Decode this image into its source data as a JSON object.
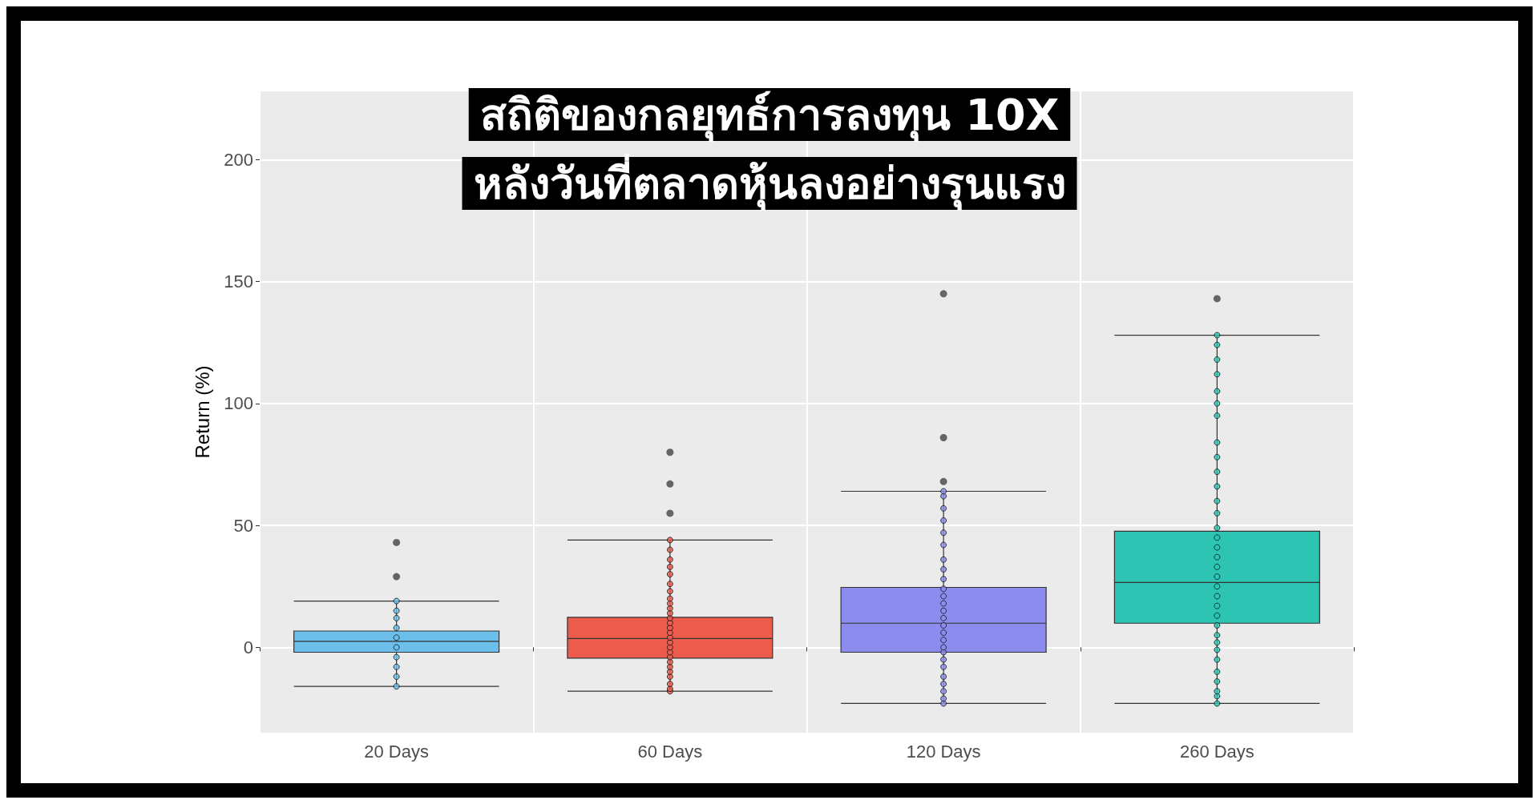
{
  "chart_data": {
    "type": "box",
    "title": "สถิติของกลยุทธ์การลงทุน 10X",
    "subtitle": "หลังวันที่ตลาดหุ้นลงอย่างรุนแรง",
    "ylabel": "Return (%)",
    "categories": [
      "20 Days",
      "60 Days",
      "120 Days",
      "260 Days"
    ],
    "colors": [
      "#6cbfea",
      "#ec5b4c",
      "#8b8cee",
      "#2ec4b4"
    ],
    "boxes": [
      {
        "low": -16,
        "q1": -2,
        "median": 2.5,
        "q3": 6.7,
        "high": 19,
        "outliers": [
          29,
          43
        ]
      },
      {
        "low": -18,
        "q1": -4.4,
        "median": 3.6,
        "q3": 12.3,
        "high": 44,
        "outliers": [
          55,
          67,
          80
        ]
      },
      {
        "low": -23,
        "q1": -2,
        "median": 9.9,
        "q3": 24.6,
        "high": 64,
        "outliers": [
          68,
          86,
          145
        ]
      },
      {
        "low": -23,
        "q1": 9.9,
        "median": 26.6,
        "q3": 47.6,
        "high": 128,
        "outliers": [
          143
        ]
      }
    ],
    "series": [
      {
        "type": "scatter",
        "color": "#6cbfea",
        "x": [
          "20 Days",
          "20 Days",
          "20 Days",
          "20 Days",
          "20 Days",
          "20 Days",
          "20 Days",
          "20 Days",
          "20 Days",
          "20 Days"
        ],
        "values": [
          -16,
          -12,
          -8,
          -4,
          0,
          4,
          8,
          12,
          15,
          19
        ]
      },
      {
        "type": "scatter",
        "color": "#ec5b4c",
        "x": [
          "60 Days",
          "60 Days",
          "60 Days",
          "60 Days",
          "60 Days",
          "60 Days",
          "60 Days",
          "60 Days",
          "60 Days",
          "60 Days",
          "60 Days",
          "60 Days",
          "60 Days",
          "60 Days",
          "60 Days",
          "60 Days",
          "60 Days",
          "60 Days",
          "60 Days",
          "60 Days",
          "60 Days",
          "60 Days",
          "60 Days",
          "60 Days",
          "60 Days",
          "60 Days",
          "60 Days"
        ],
        "values": [
          -18,
          -17,
          -15,
          -12,
          -10,
          -8,
          -6,
          -4,
          -2,
          0,
          2,
          4,
          6,
          8,
          10,
          12,
          14,
          16,
          18,
          20,
          23,
          26,
          30,
          33,
          36,
          40,
          44
        ]
      },
      {
        "type": "scatter",
        "color": "#8b8cee",
        "x": [
          "120 Days",
          "120 Days",
          "120 Days",
          "120 Days",
          "120 Days",
          "120 Days",
          "120 Days",
          "120 Days",
          "120 Days",
          "120 Days",
          "120 Days",
          "120 Days",
          "120 Days",
          "120 Days",
          "120 Days",
          "120 Days",
          "120 Days",
          "120 Days",
          "120 Days",
          "120 Days",
          "120 Days",
          "120 Days",
          "120 Days",
          "120 Days",
          "120 Days",
          "120 Days"
        ],
        "values": [
          -23,
          -21,
          -18,
          -15,
          -12,
          -8,
          -5,
          -2,
          0,
          3,
          6,
          9,
          12,
          15,
          18,
          21,
          24,
          28,
          32,
          36,
          42,
          47,
          52,
          57,
          62,
          64
        ]
      },
      {
        "type": "scatter",
        "color": "#2ec4b4",
        "x": [
          "260 Days",
          "260 Days",
          "260 Days",
          "260 Days",
          "260 Days",
          "260 Days",
          "260 Days",
          "260 Days",
          "260 Days",
          "260 Days",
          "260 Days",
          "260 Days",
          "260 Days",
          "260 Days",
          "260 Days",
          "260 Days",
          "260 Days",
          "260 Days",
          "260 Days",
          "260 Days",
          "260 Days",
          "260 Days",
          "260 Days",
          "260 Days",
          "260 Days",
          "260 Days",
          "260 Days",
          "260 Days",
          "260 Days",
          "260 Days",
          "260 Days",
          "260 Days",
          "260 Days"
        ],
        "values": [
          -23,
          -20,
          -18,
          -14,
          -10,
          -5,
          -1,
          2,
          5,
          9,
          13,
          17,
          21,
          25,
          29,
          33,
          37,
          41,
          45,
          49,
          55,
          60,
          66,
          72,
          78,
          84,
          95,
          100,
          105,
          112,
          118,
          124,
          128
        ]
      }
    ],
    "ylim": [
      -35,
      228
    ],
    "yticks": [
      0,
      50,
      100,
      150,
      200
    ],
    "grid": true,
    "marker": "circle"
  }
}
